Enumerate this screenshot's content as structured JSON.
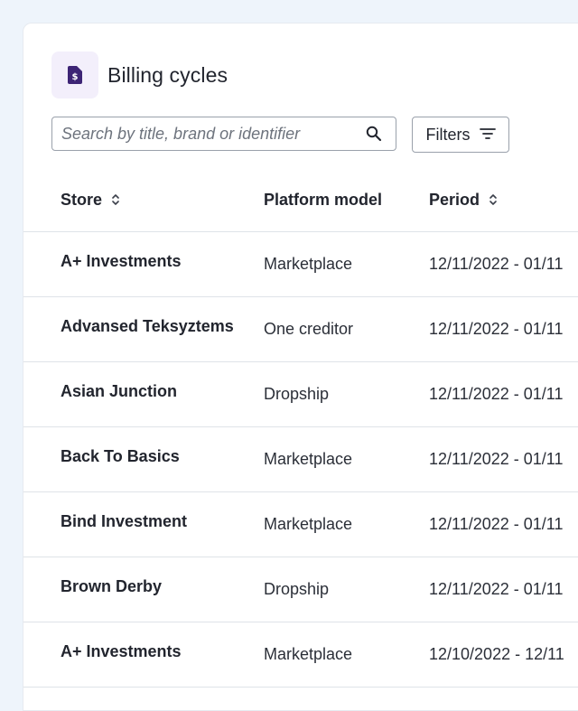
{
  "page": {
    "title": "Billing cycles",
    "icon": "billing-document-icon"
  },
  "search": {
    "placeholder": "Search by title, brand or identifier",
    "value": ""
  },
  "filters": {
    "label": "Filters"
  },
  "colors": {
    "accent": "#3d2475",
    "icon_bg": "#f3effb",
    "background": "#eef4fb",
    "border": "#dfe3e8"
  },
  "table": {
    "columns": [
      {
        "label": "Store",
        "sortable": true
      },
      {
        "label": "Platform model",
        "sortable": false
      },
      {
        "label": "Period",
        "sortable": true
      }
    ],
    "rows": [
      {
        "store": "A+ Investments",
        "model": "Marketplace",
        "period": "12/11/2022 - 01/11"
      },
      {
        "store": "Advansed Teksyztems",
        "model": "One creditor",
        "period": "12/11/2022 - 01/11"
      },
      {
        "store": "Asian Junction",
        "model": "Dropship",
        "period": "12/11/2022 - 01/11"
      },
      {
        "store": "Back To Basics",
        "model": "Marketplace",
        "period": "12/11/2022 - 01/11"
      },
      {
        "store": "Bind Investment",
        "model": "Marketplace",
        "period": "12/11/2022 - 01/11"
      },
      {
        "store": "Brown Derby",
        "model": "Dropship",
        "period": "12/11/2022 - 01/11"
      },
      {
        "store": "A+ Investments",
        "model": "Marketplace",
        "period": "12/10/2022 - 12/11"
      }
    ]
  }
}
